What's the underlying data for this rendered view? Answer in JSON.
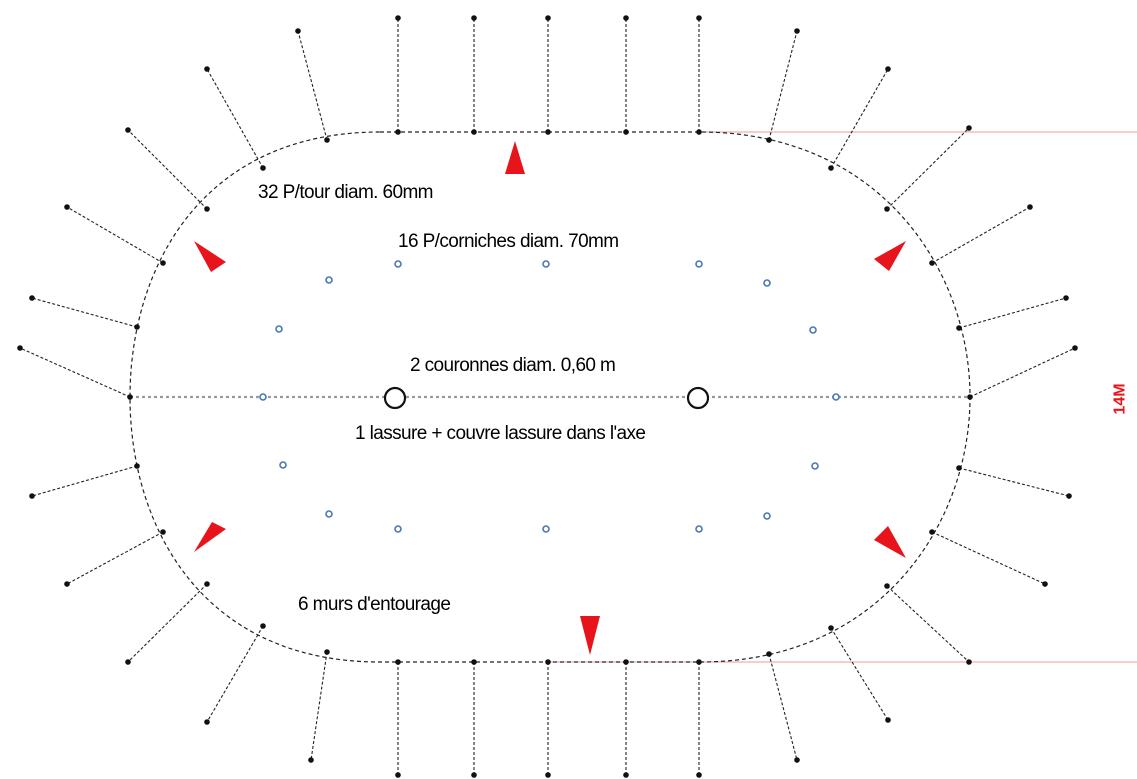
{
  "labels": {
    "tour": "32 P/tour diam. 60mm",
    "corniches": "16 P/corniches diam. 70mm",
    "couronnes": "2 couronnes diam. 0,60 m",
    "lassure": "1 lassure + couvre lassure dans l'axe",
    "murs": "6 murs d'entourage",
    "dimension": "14M"
  },
  "colors": {
    "outline": "#222222",
    "dots": "#111111",
    "axis": "#9a9a9a",
    "inner_markers": "#4a78b5",
    "arrows": "#e8141b",
    "dimension_lines": "#f29a9a",
    "dimension_text": "#e8141b"
  },
  "counts": {
    "perimeter_posts": 32,
    "cornice_posts": 16,
    "crowns": 2,
    "walls": 6
  }
}
